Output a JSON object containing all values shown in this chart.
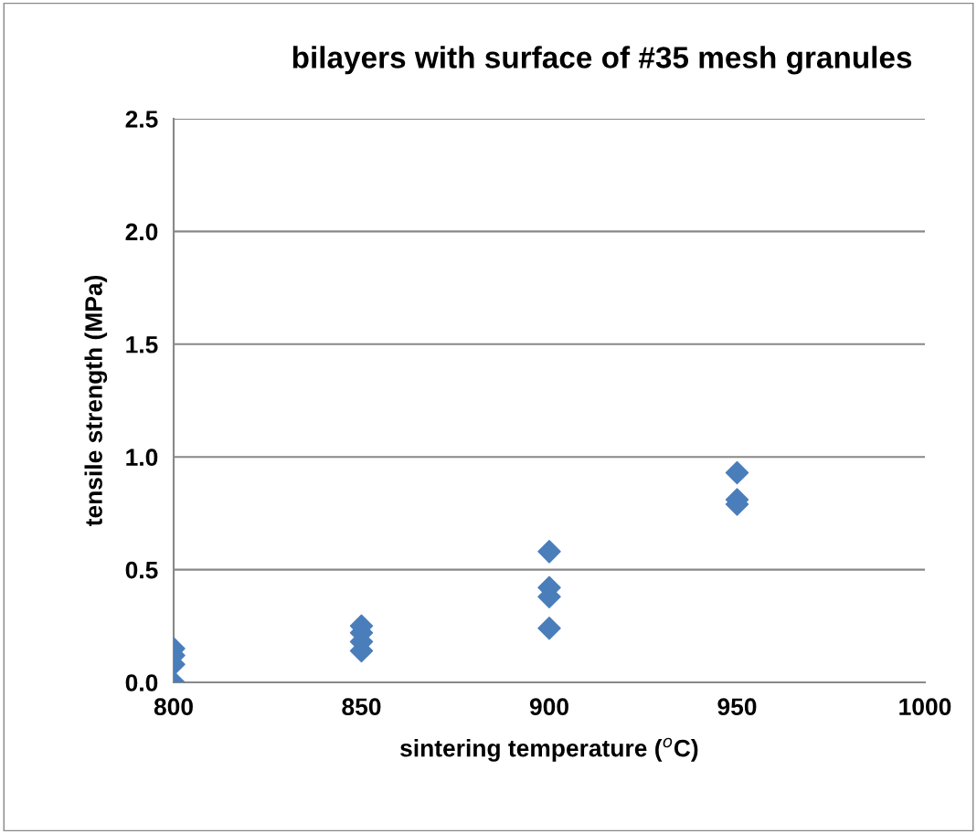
{
  "chart_data": {
    "type": "scatter",
    "title": "bilayers with surface of #35 mesh granules",
    "xlabel": "sintering temperature ($^{o}$C)",
    "ylabel": "tensile strength (MPa)",
    "series": [
      {
        "color": "#4a7ebb",
        "x": [
          800,
          800,
          800,
          800,
          850,
          850,
          850,
          850,
          900,
          900,
          900,
          900,
          950,
          950,
          950
        ],
        "values": [
          0.15,
          0.12,
          0.08,
          0.0,
          0.25,
          0.22,
          0.18,
          0.14,
          0.58,
          0.42,
          0.38,
          0.24,
          0.93,
          0.81,
          0.79
        ]
      }
    ],
    "marker": "diamond",
    "grid": "y",
    "xlim": [
      800,
      1000
    ],
    "xticks": [
      800,
      850,
      900,
      950,
      1000
    ],
    "ylim": [
      0,
      2.5
    ],
    "yticks": [
      {
        "value": 0,
        "label": "0.0"
      },
      {
        "value": 0.5,
        "label": "0.5"
      },
      {
        "value": 1,
        "label": "1.0"
      },
      {
        "value": 1.5,
        "label": "1.5"
      },
      {
        "value": 2,
        "label": "2.0"
      },
      {
        "value": 2.5,
        "label": "2.5"
      }
    ]
  }
}
